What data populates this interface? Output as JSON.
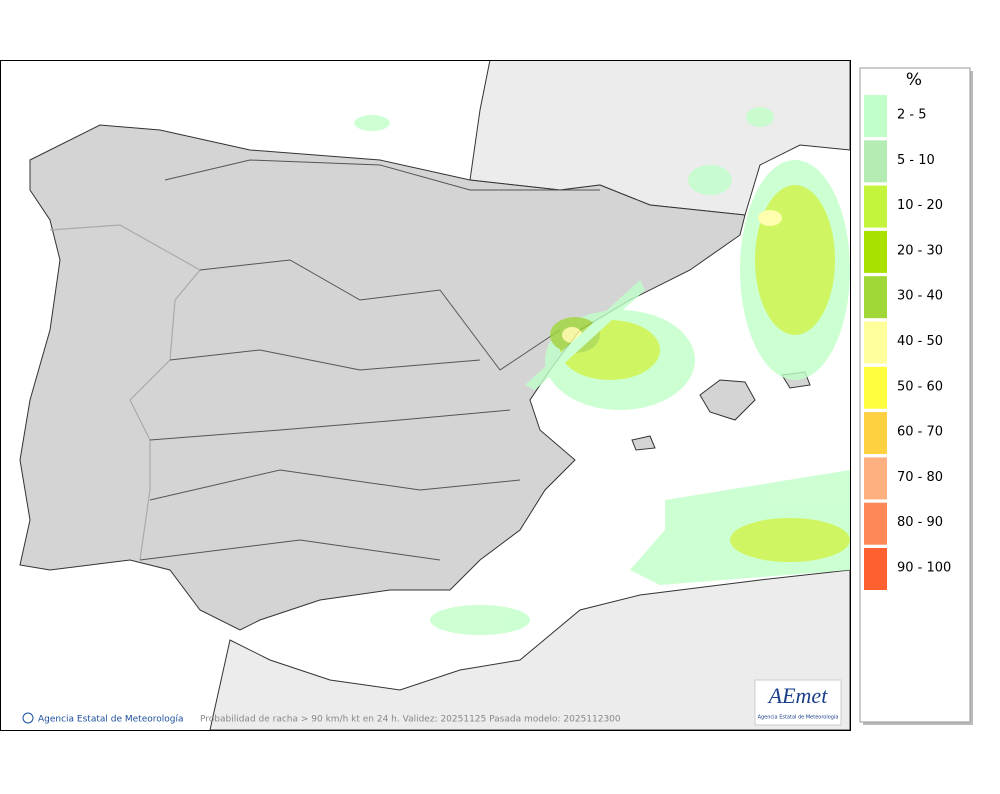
{
  "legend": {
    "title": "%",
    "items": [
      {
        "label": "2 - 5",
        "color": "#c0ffc8"
      },
      {
        "label": "5 - 10",
        "color": "#b4ecb4"
      },
      {
        "label": "10 - 20",
        "color": "#c4f53c"
      },
      {
        "label": "20 - 30",
        "color": "#a8e000"
      },
      {
        "label": "30 - 40",
        "color": "#a0d838"
      },
      {
        "label": "40 - 50",
        "color": "#ffff9c"
      },
      {
        "label": "50 - 60",
        "color": "#ffff40"
      },
      {
        "label": "60 - 70",
        "color": "#ffd040"
      },
      {
        "label": "70 - 80",
        "color": "#ffb080"
      },
      {
        "label": "80 - 90",
        "color": "#ff8858"
      },
      {
        "label": "90 - 100",
        "color": "#ff6030"
      }
    ]
  },
  "footer": {
    "credit": "Agencia Estatal de Meteorología",
    "caption": "Probabilidad de racha > 90 km/h kt en 24 h. Validez: 20251125 Pasada modelo: 2025112300"
  },
  "logo": {
    "name": "AEmet",
    "subtitle": "Agencia Estatal de Meteorología"
  }
}
